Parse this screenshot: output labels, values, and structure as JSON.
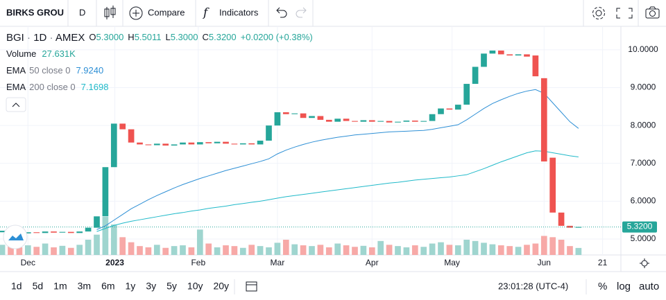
{
  "toolbar": {
    "symbol": "BIRKS GROU",
    "interval": "D",
    "compare": "Compare",
    "indicators": "Indicators"
  },
  "legend": {
    "symbol": "BGI",
    "interval": "1D",
    "exchange": "AMEX",
    "o": "O",
    "open": "5.3000",
    "h": "H",
    "high": "5.5011",
    "l": "L",
    "low": "5.3000",
    "c": "C",
    "close": "5.3200",
    "change": "+0.0200 (+0.38%)",
    "volume": "Volume",
    "volume_value": "27.631K"
  },
  "bottom": {
    "ranges": [
      "1d",
      "5d",
      "1m",
      "3m",
      "6m",
      "1y",
      "3y",
      "5y",
      "10y",
      "20y"
    ],
    "time": "23:01:28 (UTC-4)",
    "percent": "%",
    "log": "log",
    "auto": "auto"
  },
  "chart_data": {
    "type": "candlestick",
    "up_color": "#26a69a",
    "down_color": "#ef5350",
    "up_volume_color": "#9fd5cf",
    "down_volume_color": "#f7a9a7",
    "xlim": [
      -0.25,
      71.93
    ],
    "xticks": [
      {
        "value": 3,
        "label": "Dec"
      },
      {
        "value": 13.1,
        "label": "2023"
      },
      {
        "value": 22.8,
        "label": "Feb"
      },
      {
        "value": 32,
        "label": "Mar"
      },
      {
        "value": 43,
        "label": "Apr"
      },
      {
        "value": 52.3,
        "label": "May"
      },
      {
        "value": 63,
        "label": "Jun"
      },
      {
        "value": 69.8,
        "label": "21"
      }
    ],
    "ylim": [
      4.58,
      10.62
    ],
    "yticks": [
      {
        "value": 5,
        "label": "5.0000"
      },
      {
        "value": 6,
        "label": "6.0000"
      },
      {
        "value": 7,
        "label": "7.0000"
      },
      {
        "value": 8,
        "label": "8.0000"
      },
      {
        "value": 9,
        "label": "9.0000"
      },
      {
        "value": 10,
        "label": "10.0000"
      }
    ],
    "volume_lim": [
      0,
      300000
    ],
    "open": [
      5.18,
      5.22,
      5.17,
      5.15,
      5.18,
      5.16,
      5.2,
      5.17,
      5.19,
      5.16,
      5.2,
      5.3,
      5.6,
      6.9,
      8.05,
      7.9,
      7.55,
      7.5,
      7.48,
      7.52,
      7.47,
      7.5,
      7.55,
      7.5,
      7.56,
      7.53,
      7.57,
      7.52,
      7.5,
      7.53,
      7.5,
      7.6,
      8.0,
      8.35,
      8.3,
      8.32,
      8.2,
      8.25,
      8.15,
      8.1,
      8.18,
      8.12,
      8.1,
      8.14,
      8.1,
      8.12,
      8.08,
      8.1,
      8.13,
      8.1,
      8.12,
      8.3,
      8.45,
      8.42,
      8.55,
      9.1,
      9.55,
      9.9,
      9.98,
      9.88,
      9.85,
      9.88,
      9.85,
      9.25,
      7.15,
      5.7,
      5.35,
      5.3
    ],
    "close": [
      5.22,
      5.17,
      5.15,
      5.18,
      5.16,
      5.2,
      5.17,
      5.19,
      5.16,
      5.2,
      5.3,
      5.6,
      6.9,
      8.05,
      7.9,
      7.55,
      7.5,
      7.48,
      7.52,
      7.47,
      7.5,
      7.55,
      7.5,
      7.56,
      7.53,
      7.57,
      7.52,
      7.5,
      7.53,
      7.5,
      7.6,
      8.0,
      8.35,
      8.3,
      8.32,
      8.2,
      8.25,
      8.15,
      8.1,
      8.18,
      8.12,
      8.1,
      8.14,
      8.1,
      8.12,
      8.08,
      8.1,
      8.13,
      8.1,
      8.12,
      8.3,
      8.45,
      8.42,
      8.55,
      9.1,
      9.55,
      9.9,
      9.98,
      9.88,
      9.85,
      9.88,
      9.82,
      9.3,
      7.05,
      5.7,
      5.35,
      5.3,
      5.32
    ],
    "volume": [
      40000,
      35000,
      30000,
      38000,
      32000,
      45000,
      30000,
      36000,
      28000,
      40000,
      60000,
      80000,
      150000,
      120000,
      70000,
      50000,
      35000,
      30000,
      40000,
      28000,
      35000,
      38000,
      30000,
      100000,
      45000,
      30000,
      38000,
      35000,
      28000,
      40000,
      35000,
      30000,
      48000,
      60000,
      42000,
      38000,
      35000,
      40000,
      30000,
      45000,
      38000,
      32000,
      36000,
      30000,
      55000,
      40000,
      35000,
      30000,
      38000,
      32000,
      45000,
      50000,
      40000,
      38000,
      60000,
      55000,
      48000,
      42000,
      38000,
      35000,
      32000,
      40000,
      45000,
      75000,
      70000,
      60000,
      35000,
      27631
    ],
    "ema": [
      {
        "label": "EMA",
        "params": "50 close 0",
        "last": "7.9240",
        "color": "#2d8fd5",
        "values": [
          null,
          null,
          null,
          null,
          null,
          null,
          null,
          null,
          null,
          null,
          null,
          5.25,
          5.35,
          5.5,
          5.65,
          5.8,
          5.92,
          6.04,
          6.15,
          6.25,
          6.35,
          6.44,
          6.52,
          6.6,
          6.67,
          6.74,
          6.81,
          6.87,
          6.93,
          6.99,
          7.05,
          7.12,
          7.25,
          7.35,
          7.43,
          7.5,
          7.56,
          7.61,
          7.65,
          7.69,
          7.72,
          7.75,
          7.77,
          7.79,
          7.81,
          7.83,
          7.84,
          7.85,
          7.86,
          7.87,
          7.9,
          7.94,
          7.98,
          8.02,
          8.15,
          8.3,
          8.45,
          8.58,
          8.68,
          8.77,
          8.85,
          8.91,
          8.95,
          8.85,
          8.6,
          8.35,
          8.1,
          7.924
        ]
      },
      {
        "label": "EMA",
        "params": "200 close 0",
        "last": "7.1698",
        "color": "#1fb9c9",
        "values": [
          null,
          null,
          null,
          null,
          null,
          null,
          null,
          null,
          null,
          null,
          null,
          5.2,
          5.28,
          5.36,
          5.42,
          5.47,
          5.51,
          5.55,
          5.59,
          5.63,
          5.67,
          5.7,
          5.74,
          5.77,
          5.81,
          5.84,
          5.87,
          5.91,
          5.94,
          5.97,
          6.0,
          6.04,
          6.08,
          6.12,
          6.15,
          6.18,
          6.21,
          6.24,
          6.27,
          6.3,
          6.33,
          6.36,
          6.39,
          6.42,
          6.45,
          6.48,
          6.5,
          6.53,
          6.56,
          6.58,
          6.6,
          6.62,
          6.64,
          6.67,
          6.7,
          6.78,
          6.86,
          6.95,
          7.04,
          7.12,
          7.2,
          7.28,
          7.33,
          7.32,
          7.28,
          7.24,
          7.2,
          7.1698
        ]
      }
    ]
  }
}
